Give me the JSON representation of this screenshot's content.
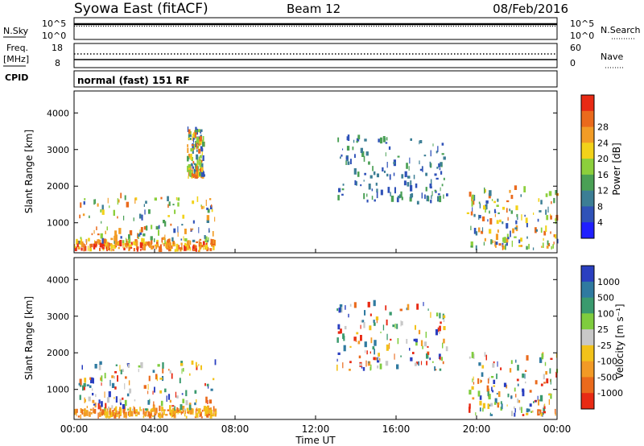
{
  "header": {
    "title": "Syowa East (fitACF)",
    "beam": "Beam 12",
    "date": "08/Feb/2016"
  },
  "status_panel": {
    "nsky_label": "N.Sky",
    "nsearch_label": "N.Search",
    "freq_label": "Freq.",
    "freq_unit": "[MHz]",
    "nave_label": "Nave",
    "cpid_label": "CPID",
    "cpid_text": "normal (fast) 151 RF",
    "noise_ticks": [
      "10^5",
      "10^0"
    ],
    "freq_ticks": [
      "18",
      "8"
    ],
    "nave_ticks": [
      "60",
      "0"
    ]
  },
  "chart_data": [
    {
      "type": "heatmap",
      "name": "power",
      "xlabel": "",
      "ylabel": "Slant Range [km]",
      "xlim": [
        0,
        24
      ],
      "ylim": [
        180,
        4600
      ],
      "x_ticks": [
        "00:00",
        "04:00",
        "08:00",
        "12:00",
        "16:00",
        "20:00",
        "00:00"
      ],
      "y_ticks": [
        1000,
        2000,
        3000,
        4000
      ],
      "colorbar": {
        "label": "Power [dB]",
        "ticks": [
          "4",
          "8",
          "12",
          "16",
          "20",
          "24",
          "28"
        ],
        "colors": [
          "#1f1fff",
          "#2f52b8",
          "#3c7e95",
          "#4aa055",
          "#8ccf3c",
          "#f2d21a",
          "#f29c26",
          "#ea6a1c",
          "#e82a14"
        ]
      },
      "echo_regions": [
        {
          "x": [
            0.0,
            7.0
          ],
          "y": [
            200,
            420
          ],
          "level": "high"
        },
        {
          "x": [
            0.2,
            7.0
          ],
          "y": [
            420,
            1700
          ],
          "level": "scattered"
        },
        {
          "x": [
            5.6,
            6.4
          ],
          "y": [
            2200,
            3500
          ],
          "level": "scattered"
        },
        {
          "x": [
            13.0,
            18.5
          ],
          "y": [
            1500,
            3300
          ],
          "level": "low"
        },
        {
          "x": [
            19.5,
            24.0
          ],
          "y": [
            250,
            1900
          ],
          "level": "mixed"
        }
      ]
    },
    {
      "type": "heatmap",
      "name": "velocity",
      "xlabel": "Time UT",
      "ylabel": "Slant Range [km]",
      "xlim": [
        0,
        24
      ],
      "ylim": [
        180,
        4600
      ],
      "x_ticks": [
        "00:00",
        "04:00",
        "08:00",
        "12:00",
        "16:00",
        "20:00",
        "00:00"
      ],
      "y_ticks": [
        1000,
        2000,
        3000,
        4000
      ],
      "colorbar": {
        "label": "Velocity [m s⁻¹]",
        "ticks": [
          "1000",
          "500",
          "100",
          "25",
          "-25",
          "-100",
          "-500",
          "-1000"
        ],
        "colors": [
          "#2a3fc0",
          "#2f7aa0",
          "#3a9a6e",
          "#7fcc3e",
          "#c8c8c8",
          "#f2c21a",
          "#f29a26",
          "#ea6a1c",
          "#e82a14"
        ]
      },
      "echo_regions": [
        {
          "x": [
            0.0,
            7.0
          ],
          "y": [
            200,
            420
          ],
          "level": "negative"
        },
        {
          "x": [
            0.2,
            7.0
          ],
          "y": [
            420,
            1700
          ],
          "level": "mixed"
        },
        {
          "x": [
            13.0,
            18.5
          ],
          "y": [
            1500,
            3300
          ],
          "level": "mixed"
        },
        {
          "x": [
            19.5,
            24.0
          ],
          "y": [
            250,
            1900
          ],
          "level": "mixed"
        }
      ]
    }
  ]
}
